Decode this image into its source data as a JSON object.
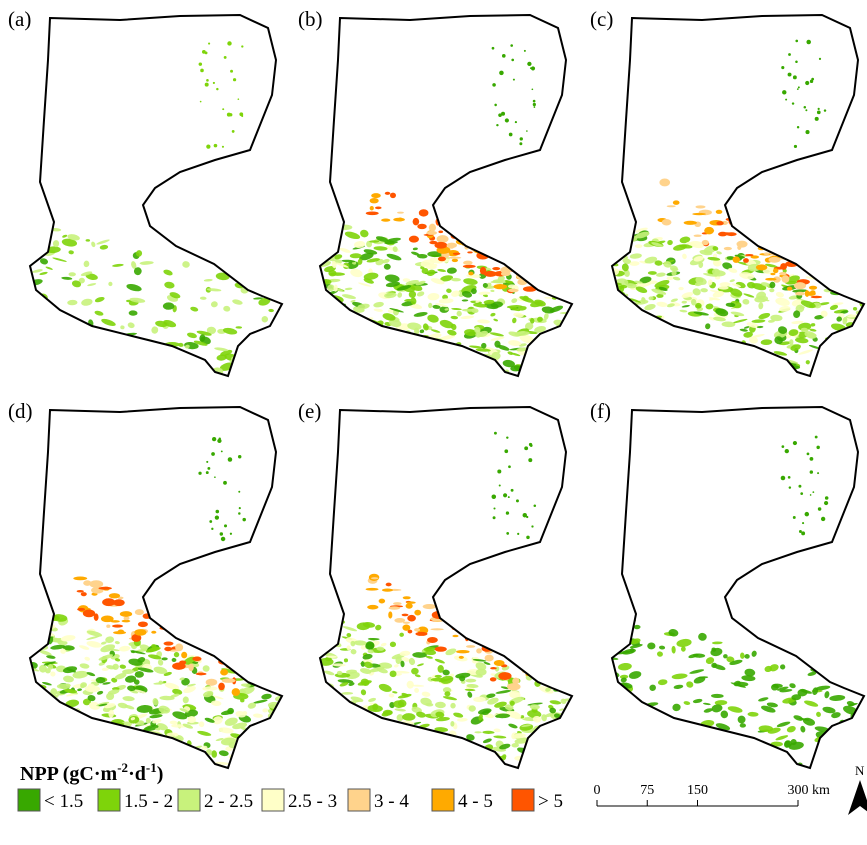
{
  "panels": [
    {
      "label": "(a)"
    },
    {
      "label": "(b)"
    },
    {
      "label": "(c)"
    },
    {
      "label": "(d)"
    },
    {
      "label": "(e)"
    },
    {
      "label": "(f)"
    }
  ],
  "legend": {
    "title": {
      "main": "NPP (gC·m",
      "sup1": "-2",
      "mid": "·d",
      "sup2": "-1",
      "end": ")"
    },
    "items": [
      {
        "label": "< 1.5",
        "color": "#38a800"
      },
      {
        "label": "1.5 - 2",
        "color": "#7ed40a"
      },
      {
        "label": "2 - 2.5",
        "color": "#c8f27c"
      },
      {
        "label": "2.5 - 3",
        "color": "#ffffc8"
      },
      {
        "label": "3 - 4",
        "color": "#ffd38c"
      },
      {
        "label": "4 - 5",
        "color": "#ffaa00"
      },
      {
        "label": "> 5",
        "color": "#ff5500"
      }
    ]
  },
  "scale_bar": {
    "ticks": [
      0,
      75,
      150,
      300
    ],
    "unit": "km"
  },
  "north": "N"
}
